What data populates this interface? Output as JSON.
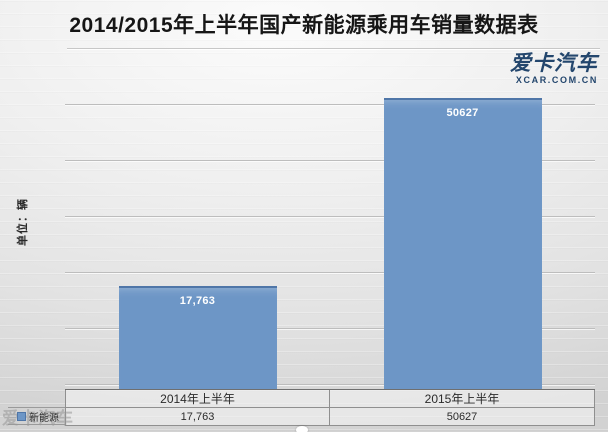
{
  "title": "2014/2015年上半年国产新能源乘用车销量数据表",
  "logo": {
    "cn": "爱卡汽车",
    "en": "XCAR.COM.CN",
    "color": "#23466d"
  },
  "watermark": "爱卡汽车",
  "chart_data": {
    "type": "bar",
    "title": "2014/2015年上半年国产新能源乘用车销量数据表",
    "categories": [
      "2014年上半年",
      "2015年上半年"
    ],
    "series": [
      {
        "name": "新能源",
        "values": [
          17763,
          50627
        ],
        "labels": [
          "17,763",
          "50627"
        ]
      }
    ],
    "ylabel": "单位：辆",
    "ylim": [
      0,
      50000
    ],
    "grid_major_unit": 10000,
    "grid": true,
    "legend_position": "data-table-left",
    "bar_color": "#6d96c6",
    "data_table": {
      "row_header": "新能源",
      "columns": [
        "2014年上半年",
        "2015年上半年"
      ],
      "values": [
        "17,763",
        "50627"
      ]
    }
  }
}
